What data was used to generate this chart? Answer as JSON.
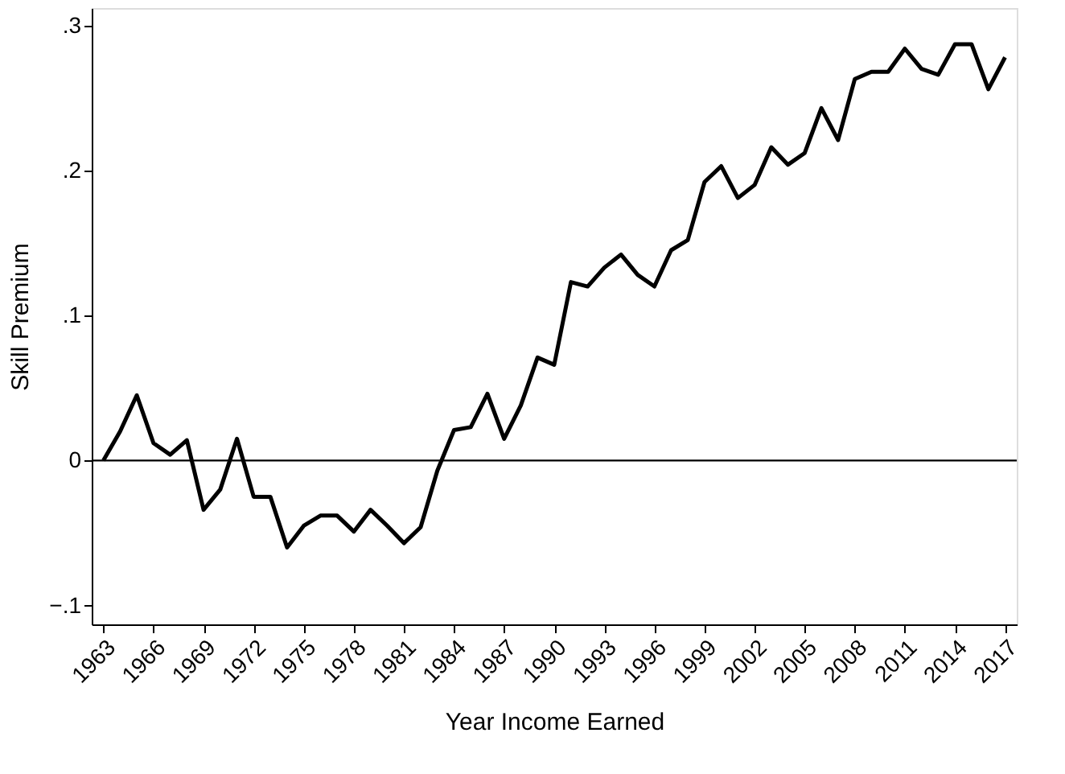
{
  "chart_data": {
    "type": "line",
    "xlabel": "Year Income Earned",
    "ylabel": "Skill Premium",
    "x": [
      1963,
      1964,
      1965,
      1966,
      1967,
      1968,
      1969,
      1970,
      1971,
      1972,
      1973,
      1974,
      1975,
      1976,
      1977,
      1978,
      1979,
      1980,
      1981,
      1982,
      1983,
      1984,
      1985,
      1986,
      1987,
      1988,
      1989,
      1990,
      1991,
      1992,
      1993,
      1994,
      1995,
      1996,
      1997,
      1998,
      1999,
      2000,
      2001,
      2002,
      2003,
      2004,
      2005,
      2006,
      2007,
      2008,
      2009,
      2010,
      2011,
      2012,
      2013,
      2014,
      2015,
      2016,
      2017
    ],
    "series": [
      {
        "color": "#000000",
        "values": [
          0,
          0.02,
          0.045,
          0.012,
          0.004,
          0.014,
          -0.034,
          -0.02,
          0.015,
          -0.025,
          -0.025,
          -0.06,
          -0.045,
          -0.038,
          -0.038,
          -0.049,
          -0.034,
          -0.045,
          -0.057,
          -0.046,
          -0.007,
          0.021,
          0.023,
          0.046,
          0.015,
          0.038,
          0.071,
          0.066,
          0.123,
          0.12,
          0.133,
          0.142,
          0.128,
          0.12,
          0.145,
          0.152,
          0.192,
          0.203,
          0.181,
          0.19,
          0.216,
          0.204,
          0.212,
          0.243,
          0.221,
          0.263,
          0.268,
          0.268,
          0.284,
          0.27,
          0.266,
          0.287,
          0.287,
          0.256,
          0.278
        ]
      }
    ],
    "xlim": [
      1962.3,
      2017.7
    ],
    "xticks": [
      1963,
      1966,
      1969,
      1972,
      1975,
      1978,
      1981,
      1984,
      1987,
      1990,
      1993,
      1996,
      1999,
      2002,
      2005,
      2008,
      2011,
      2014,
      2017
    ],
    "ylim": [
      -0.113,
      0.312
    ],
    "yticks": [
      {
        "value": -0.1,
        "label": "−.1"
      },
      0,
      {
        "value": 0.1,
        "label": ".1"
      },
      {
        "value": 0.2,
        "label": ".2"
      },
      {
        "value": 0.3,
        "label": ".3"
      }
    ],
    "ref_lines": [
      {
        "axis": "y",
        "value": 0,
        "color": "#000000"
      }
    ],
    "grid": false,
    "marker": "none",
    "line_style": "solid"
  }
}
